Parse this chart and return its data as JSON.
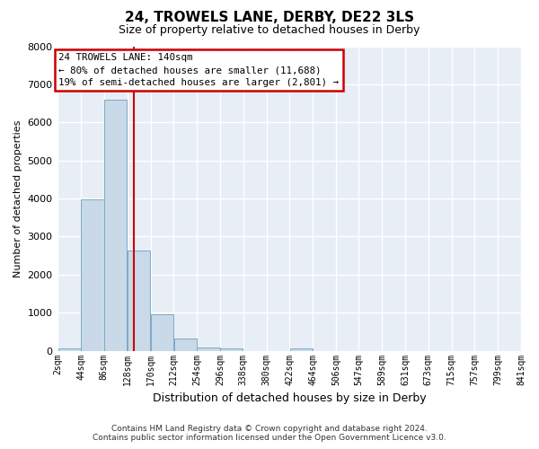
{
  "title": "24, TROWELS LANE, DERBY, DE22 3LS",
  "subtitle": "Size of property relative to detached houses in Derby",
  "xlabel": "Distribution of detached houses by size in Derby",
  "ylabel": "Number of detached properties",
  "footer_line1": "Contains HM Land Registry data © Crown copyright and database right 2024.",
  "footer_line2": "Contains public sector information licensed under the Open Government Licence v3.0.",
  "annotation_line1": "24 TROWELS LANE: 140sqm",
  "annotation_line2": "← 80% of detached houses are smaller (11,688)",
  "annotation_line3": "19% of semi-detached houses are larger (2,801) →",
  "property_size": 140,
  "bin_edges": [
    2,
    44,
    86,
    128,
    170,
    212,
    254,
    296,
    338,
    380,
    422,
    464,
    506,
    547,
    589,
    631,
    673,
    715,
    757,
    799,
    841
  ],
  "bar_heights": [
    60,
    3980,
    6600,
    2630,
    950,
    320,
    90,
    60,
    0,
    0,
    60,
    0,
    0,
    0,
    0,
    0,
    0,
    0,
    0,
    0
  ],
  "bar_color": "#c9d9e8",
  "bar_edge_color": "#7aaac8",
  "bg_color": "#e8eef5",
  "grid_color": "#ffffff",
  "red_line_color": "#cc0000",
  "annotation_box_color": "#cc0000",
  "ylim": [
    0,
    8000
  ],
  "yticks": [
    0,
    1000,
    2000,
    3000,
    4000,
    5000,
    6000,
    7000,
    8000
  ]
}
